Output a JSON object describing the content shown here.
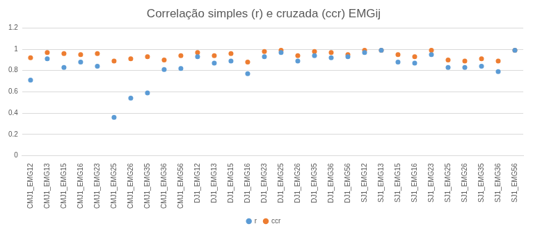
{
  "chart_data": {
    "type": "scatter",
    "title": "Correlação simples (r) e cruzada (ccr) EMGij",
    "categories": [
      "CMJ1_EMG12",
      "CMJ1_EMG13",
      "CMJ1_EMG15",
      "CMJ1_EMG16",
      "CMJ1_EMG23",
      "CMJ1_EMG25",
      "CMJ1_EMG26",
      "CMJ1_EMG35",
      "CMJ1_EMG36",
      "CMJ1_EMG56",
      "DJ1_EMG12",
      "DJ1_EMG13",
      "DJ1_EMG15",
      "DJ1_EMG16",
      "DJ1_EMG23",
      "DJ1_EMG25",
      "DJ1_EMG26",
      "DJ1_EMG35",
      "DJ1_EMG36",
      "DJ1_EMG56",
      "SJ1_EMG12",
      "SJ1_EMG13",
      "SJ1_EMG15",
      "SJ1_EMG16",
      "SJ1_EMG23",
      "SJ1_EMG25",
      "SJ1_EMG26",
      "SJ1_EMG35",
      "SJ1_EMG36",
      "SJ1_EMG56"
    ],
    "series": [
      {
        "name": "r",
        "color": "#5b9bd5",
        "marker": "circle",
        "values": [
          0.71,
          0.91,
          0.83,
          0.88,
          0.84,
          0.36,
          0.54,
          0.59,
          0.81,
          0.82,
          0.93,
          0.87,
          0.89,
          0.77,
          0.93,
          0.97,
          0.89,
          0.94,
          0.92,
          0.93,
          0.97,
          0.99,
          0.88,
          0.87,
          0.95,
          0.83,
          0.83,
          0.84,
          0.79,
          0.99
        ]
      },
      {
        "name": "ccr",
        "color": "#ed7d31",
        "marker": "circle",
        "values": [
          0.92,
          0.97,
          0.96,
          0.95,
          0.96,
          0.89,
          0.91,
          0.93,
          0.9,
          0.94,
          0.97,
          0.94,
          0.96,
          0.88,
          0.98,
          0.99,
          0.94,
          0.98,
          0.97,
          0.95,
          0.99,
          0.99,
          0.95,
          0.93,
          0.99,
          0.9,
          0.89,
          0.91,
          0.89,
          0.99
        ]
      }
    ],
    "ylim": [
      0,
      1.2
    ],
    "yticks": [
      0,
      0.2,
      0.4,
      0.6,
      0.8,
      1,
      1.2
    ],
    "grid": true,
    "legend": "bottom"
  }
}
